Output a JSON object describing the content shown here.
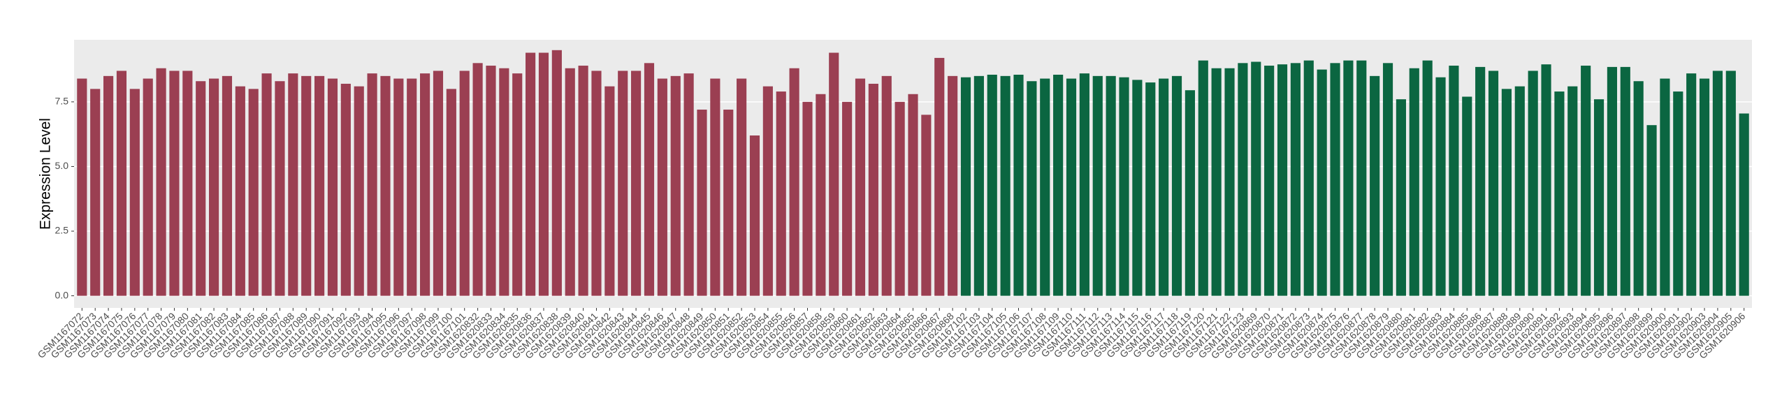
{
  "chart_data": {
    "type": "bar",
    "y_label": "Expression Level",
    "categories": [
      "GSM1167072",
      "GSM1167073",
      "GSM1167074",
      "GSM1167075",
      "GSM1167076",
      "GSM1167077",
      "GSM1167078",
      "GSM1167079",
      "GSM1167080",
      "GSM1167081",
      "GSM1167082",
      "GSM1167083",
      "GSM1167084",
      "GSM1167085",
      "GSM1167086",
      "GSM1167087",
      "GSM1167088",
      "GSM1167089",
      "GSM1167090",
      "GSM1167091",
      "GSM1167092",
      "GSM1167093",
      "GSM1167094",
      "GSM1167095",
      "GSM1167096",
      "GSM1167097",
      "GSM1167098",
      "GSM1167099",
      "GSM1167100",
      "GSM1167101",
      "GSM1620832",
      "GSM1620833",
      "GSM1620834",
      "GSM1620835",
      "GSM1620836",
      "GSM1620837",
      "GSM1620838",
      "GSM1620839",
      "GSM1620840",
      "GSM1620841",
      "GSM1620842",
      "GSM1620843",
      "GSM1620844",
      "GSM1620845",
      "GSM1620846",
      "GSM1620847",
      "GSM1620848",
      "GSM1620849",
      "GSM1620850",
      "GSM1620851",
      "GSM1620852",
      "GSM1620853",
      "GSM1620854",
      "GSM1620855",
      "GSM1620856",
      "GSM1620857",
      "GSM1620858",
      "GSM1620859",
      "GSM1620860",
      "GSM1620861",
      "GSM1620862",
      "GSM1620863",
      "GSM1620864",
      "GSM1620865",
      "GSM1620866",
      "GSM1620867",
      "GSM1620868",
      "GSM1167102",
      "GSM1167103",
      "GSM1167104",
      "GSM1167105",
      "GSM1167106",
      "GSM1167107",
      "GSM1167108",
      "GSM1167109",
      "GSM1167110",
      "GSM1167111",
      "GSM1167112",
      "GSM1167113",
      "GSM1167114",
      "GSM1167115",
      "GSM1167116",
      "GSM1167117",
      "GSM1167118",
      "GSM1167119",
      "GSM1167120",
      "GSM1167121",
      "GSM1167122",
      "GSM1167123",
      "GSM1620869",
      "GSM1620870",
      "GSM1620871",
      "GSM1620872",
      "GSM1620873",
      "GSM1620874",
      "GSM1620875",
      "GSM1620876",
      "GSM1620877",
      "GSM1620878",
      "GSM1620879",
      "GSM1620880",
      "GSM1620881",
      "GSM1620882",
      "GSM1620883",
      "GSM1620884",
      "GSM1620885",
      "GSM1620886",
      "GSM1620887",
      "GSM1620888",
      "GSM1620889",
      "GSM1620890",
      "GSM1620891",
      "GSM1620892",
      "GSM1620893",
      "GSM1620894",
      "GSM1620895",
      "GSM1620896",
      "GSM1620897",
      "GSM1620898",
      "GSM1620899",
      "GSM1620900",
      "GSM1620901",
      "GSM1620902",
      "GSM1620903",
      "GSM1620904",
      "GSM1620905",
      "GSM1620906"
    ],
    "values": [
      8.4,
      8.0,
      8.5,
      8.7,
      8.0,
      8.4,
      8.8,
      8.7,
      8.7,
      8.3,
      8.4,
      8.5,
      8.1,
      8.0,
      8.6,
      8.3,
      8.6,
      8.5,
      8.5,
      8.4,
      8.2,
      8.1,
      8.6,
      8.5,
      8.4,
      8.4,
      8.6,
      8.7,
      8.0,
      8.7,
      9.0,
      8.9,
      8.8,
      8.6,
      9.4,
      9.4,
      9.5,
      8.8,
      8.9,
      8.7,
      8.1,
      8.7,
      8.7,
      9.0,
      8.4,
      8.5,
      8.6,
      7.2,
      8.4,
      7.2,
      8.4,
      6.2,
      8.1,
      7.9,
      8.8,
      7.5,
      7.8,
      9.4,
      7.5,
      8.4,
      8.2,
      8.5,
      7.5,
      7.8,
      7.0,
      9.2,
      8.5,
      8.45,
      8.5,
      8.55,
      8.5,
      8.55,
      8.3,
      8.4,
      8.55,
      8.4,
      8.6,
      8.5,
      8.5,
      8.45,
      8.35,
      8.25,
      8.4,
      8.5,
      7.95,
      9.1,
      8.8,
      8.8,
      9.0,
      9.05,
      8.9,
      8.95,
      9.0,
      9.1,
      8.75,
      9.0,
      9.1,
      9.1,
      8.5,
      9.0,
      7.6,
      8.8,
      9.1,
      8.45,
      8.9,
      7.7,
      8.85,
      8.7,
      8.0,
      8.1,
      8.7,
      8.95,
      7.9,
      8.1,
      8.9,
      7.6,
      8.85,
      8.85,
      8.3,
      6.6,
      8.4,
      7.9,
      8.6,
      8.4,
      8.7,
      8.7,
      7.05
    ],
    "colors": [
      "#9b3f52",
      "#9b3f52",
      "#9b3f52",
      "#9b3f52",
      "#9b3f52",
      "#9b3f52",
      "#9b3f52",
      "#9b3f52",
      "#9b3f52",
      "#9b3f52",
      "#9b3f52",
      "#9b3f52",
      "#9b3f52",
      "#9b3f52",
      "#9b3f52",
      "#9b3f52",
      "#9b3f52",
      "#9b3f52",
      "#9b3f52",
      "#9b3f52",
      "#9b3f52",
      "#9b3f52",
      "#9b3f52",
      "#9b3f52",
      "#9b3f52",
      "#9b3f52",
      "#9b3f52",
      "#9b3f52",
      "#9b3f52",
      "#9b3f52",
      "#9b3f52",
      "#9b3f52",
      "#9b3f52",
      "#9b3f52",
      "#9b3f52",
      "#9b3f52",
      "#9b3f52",
      "#9b3f52",
      "#9b3f52",
      "#9b3f52",
      "#9b3f52",
      "#9b3f52",
      "#9b3f52",
      "#9b3f52",
      "#9b3f52",
      "#9b3f52",
      "#9b3f52",
      "#9b3f52",
      "#9b3f52",
      "#9b3f52",
      "#9b3f52",
      "#9b3f52",
      "#9b3f52",
      "#9b3f52",
      "#9b3f52",
      "#9b3f52",
      "#9b3f52",
      "#9b3f52",
      "#9b3f52",
      "#9b3f52",
      "#9b3f52",
      "#9b3f52",
      "#9b3f52",
      "#9b3f52",
      "#9b3f52",
      "#9b3f52",
      "#9b3f52",
      "#0b6641",
      "#0b6641",
      "#0b6641",
      "#0b6641",
      "#0b6641",
      "#0b6641",
      "#0b6641",
      "#0b6641",
      "#0b6641",
      "#0b6641",
      "#0b6641",
      "#0b6641",
      "#0b6641",
      "#0b6641",
      "#0b6641",
      "#0b6641",
      "#0b6641",
      "#0b6641",
      "#0b6641",
      "#0b6641",
      "#0b6641",
      "#0b6641",
      "#0b6641",
      "#0b6641",
      "#0b6641",
      "#0b6641",
      "#0b6641",
      "#0b6641",
      "#0b6641",
      "#0b6641",
      "#0b6641",
      "#0b6641",
      "#0b6641",
      "#0b6641",
      "#0b6641",
      "#0b6641",
      "#0b6641",
      "#0b6641",
      "#0b6641",
      "#0b6641",
      "#0b6641",
      "#0b6641",
      "#0b6641",
      "#0b6641",
      "#0b6641",
      "#0b6641",
      "#0b6641",
      "#0b6641",
      "#0b6641",
      "#0b6641",
      "#0b6641",
      "#0b6641",
      "#0b6641",
      "#0b6641",
      "#0b6641",
      "#0b6641",
      "#0b6641",
      "#0b6641",
      "#0b6641",
      "#0b6641"
    ],
    "ylim": [
      -0.47,
      9.9
    ],
    "yticks": [
      {
        "value": 0,
        "label": "0.0"
      },
      2.5,
      {
        "value": 5,
        "label": "5.0"
      },
      7.5
    ],
    "grid": true
  }
}
